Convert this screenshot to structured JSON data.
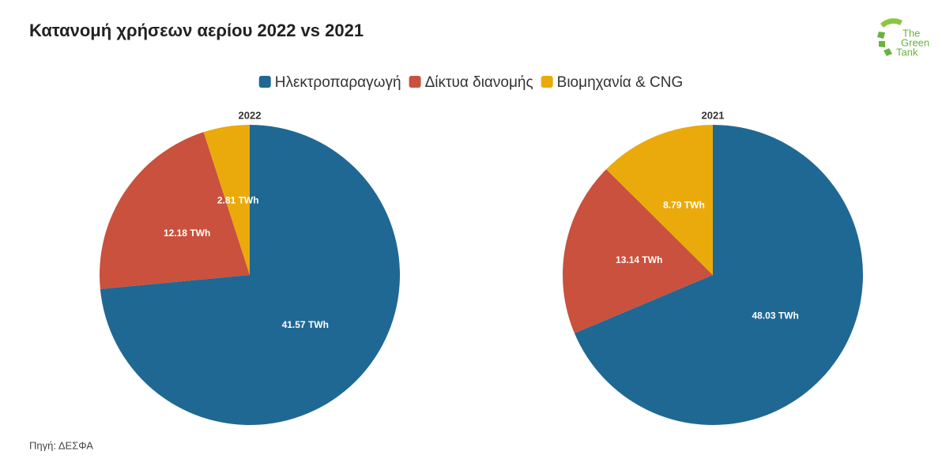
{
  "header": {
    "title": "Κατανομή χρήσεων αερίου 2022 vs 2021",
    "source": "Πηγή: ΔΕΣΦΑ",
    "logo": [
      "The",
      "Green",
      "Tank"
    ]
  },
  "chart_data": [
    {
      "type": "pie",
      "title": "2022",
      "categories": [
        "Ηλεκτροπαραγωγή",
        "Δίκτυα διανομής",
        "Βιομηχανία & CNG"
      ],
      "values": [
        41.57,
        12.18,
        2.81
      ],
      "value_labels": [
        "41.57 TWh",
        "12.18 TWh",
        "2.81 TWh"
      ],
      "colors": [
        "#1f6893",
        "#c9513d",
        "#eaaa0c"
      ]
    },
    {
      "type": "pie",
      "title": "2021",
      "categories": [
        "Ηλεκτροπαραγωγή",
        "Δίκτυα διανομής",
        "Βιομηχανία & CNG"
      ],
      "values": [
        48.03,
        13.14,
        8.79
      ],
      "value_labels": [
        "48.03 TWh",
        "13.14 TWh",
        "8.79 TWh"
      ],
      "colors": [
        "#1f6893",
        "#c9513d",
        "#eaaa0c"
      ]
    }
  ]
}
